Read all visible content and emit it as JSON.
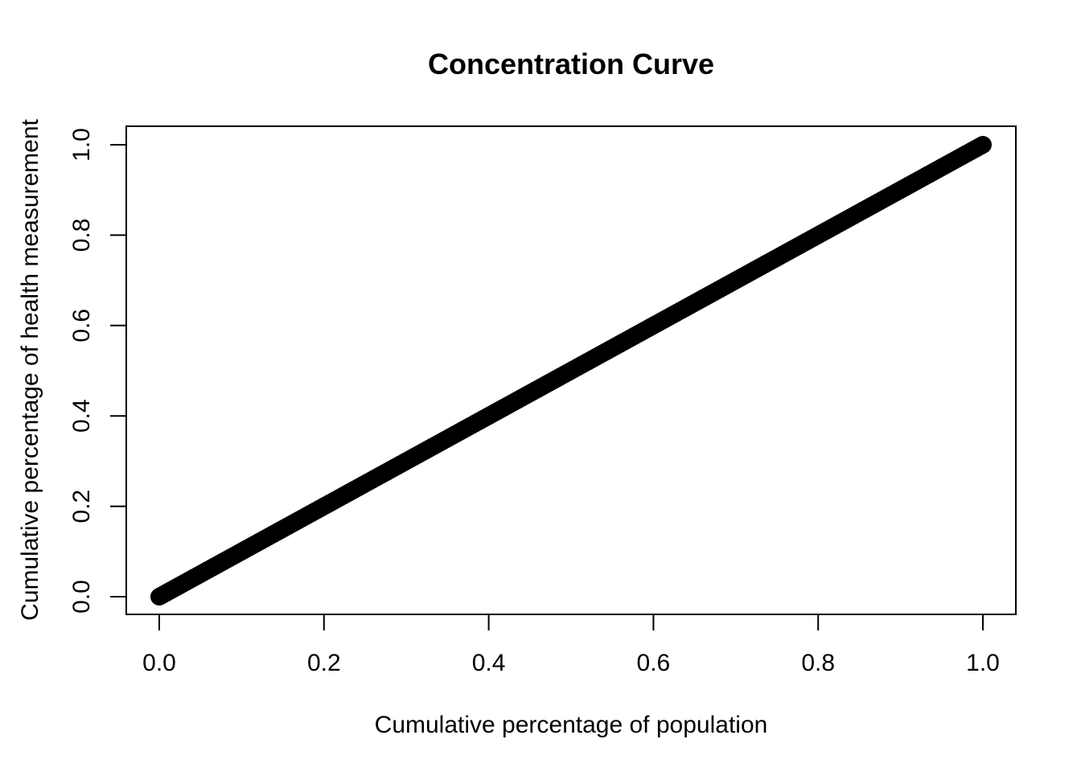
{
  "chart_data": {
    "type": "scatter",
    "title": "Concentration Curve",
    "xlabel": "Cumulative percentage of population",
    "ylabel": "Cumulative percentage of health measurement",
    "xlim": [
      0,
      1
    ],
    "ylim": [
      0,
      1
    ],
    "xticks": [
      0.0,
      0.2,
      0.4,
      0.6,
      0.8,
      1.0
    ],
    "yticks": [
      0.0,
      0.2,
      0.4,
      0.6,
      0.8,
      1.0
    ],
    "xtick_labels": [
      "0.0",
      "0.2",
      "0.4",
      "0.6",
      "0.8",
      "1.0"
    ],
    "ytick_labels": [
      "0.0",
      "0.2",
      "0.4",
      "0.6",
      "0.8",
      "1.0"
    ],
    "grid": false,
    "series": [
      {
        "x": [
          0.0,
          0.05,
          0.1,
          0.15,
          0.2,
          0.25,
          0.3,
          0.35,
          0.4,
          0.45,
          0.5,
          0.55,
          0.6,
          0.65,
          0.7,
          0.75,
          0.8,
          0.85,
          0.9,
          0.95,
          1.0
        ],
        "y": [
          0.0,
          0.05,
          0.1,
          0.15,
          0.2,
          0.25,
          0.3,
          0.35,
          0.4,
          0.45,
          0.5,
          0.55,
          0.6,
          0.65,
          0.7,
          0.75,
          0.8,
          0.85,
          0.9,
          0.95,
          1.0
        ],
        "color": "#000000"
      }
    ]
  }
}
